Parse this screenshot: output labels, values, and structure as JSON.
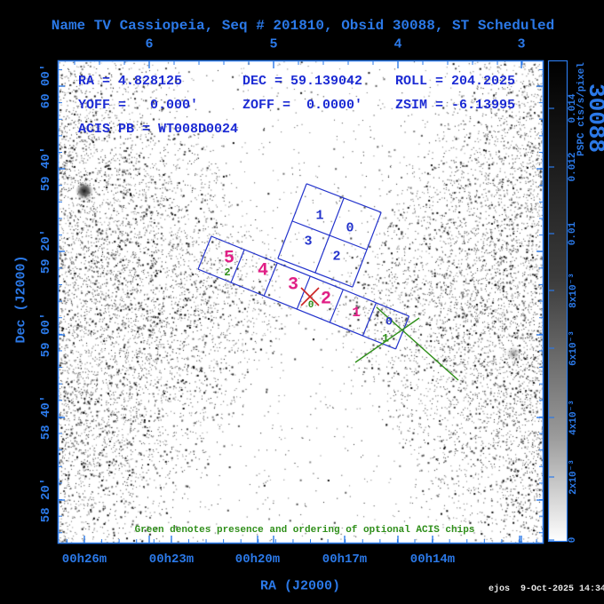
{
  "title": "Name TV Cassiopeia, Seq # 201810, Obsid 30088, ST Scheduled",
  "info": {
    "ra": "RA = 4.828125",
    "dec": "DEC = 59.139042",
    "roll": "ROLL = 204.2025",
    "yoff": "YOFF =   0.000'",
    "zoff": "ZOFF =  0.0000'",
    "zsim": "ZSIM = -6.13995",
    "acis_pb": "ACIS PB = WT008D0024"
  },
  "axes": {
    "top": {
      "labels": [
        "6",
        "5",
        "4",
        "3"
      ]
    },
    "bottom": {
      "title": "RA (J2000)",
      "labels": [
        "00h26m",
        "00h23m",
        "00h20m",
        "00h17m",
        "00h14m"
      ]
    },
    "left": {
      "title": "Dec (J2000)",
      "labels": [
        "60 00'",
        "59 40'",
        "59 20'",
        "59 00'",
        "58 40'",
        "58 20'"
      ]
    }
  },
  "colorbar": {
    "title": "PSPC cts/s/pixel",
    "labels": [
      "0.014",
      "0.012",
      "0.01",
      "8x10⁻³",
      "6x10⁻³",
      "4x10⁻³",
      "2x10⁻³",
      "0"
    ],
    "corner_number": "30088"
  },
  "chips": {
    "i_array": [
      {
        "label": "1"
      },
      {
        "label": "0"
      },
      {
        "label": "3"
      },
      {
        "label": "2"
      }
    ],
    "s_array": [
      {
        "label": "5",
        "optional": "2"
      },
      {
        "label": "4"
      },
      {
        "label": "3"
      },
      {
        "label": "2"
      },
      {
        "label": "1"
      },
      {
        "label": "0",
        "optional": "1"
      }
    ],
    "aimpoint_optional": "0"
  },
  "legend": "Green denotes presence and ordering of optional ACIS chips",
  "footer": "ejos  9-Oct-2025 14:34",
  "colors": {
    "axis_blue": "#2b79e8",
    "info_blue": "#1c2bd4",
    "chip_blue": "#2333cc",
    "magenta": "#e01f85",
    "green": "#2f8f1a",
    "red_x": "#cc2222",
    "background": "#000000",
    "sky": "#ffffff"
  },
  "chart_data": {
    "type": "heatmap",
    "title": "Name TV Cassiopeia, Seq # 201810, Obsid 30088, ST Scheduled",
    "xlabel": "RA (J2000)",
    "ylabel": "Dec (J2000)",
    "x_tick_labels": [
      "00h26m",
      "00h23m",
      "00h20m",
      "00h17m",
      "00h14m"
    ],
    "y_tick_labels": [
      "60 00'",
      "59 40'",
      "59 20'",
      "59 00'",
      "58 40'",
      "58 20'"
    ],
    "top_axis_tick_labels": [
      "6",
      "5",
      "4",
      "3"
    ],
    "colorbar": {
      "label": "PSPC cts/s/pixel",
      "tick_labels": [
        "0.014",
        "0.012",
        "0.01",
        "8x10⁻³",
        "6x10⁻³",
        "4x10⁻³",
        "2x10⁻³",
        "0"
      ],
      "scale": "grayscale, black = high intensity"
    },
    "annotations": {
      "target": {
        "ra": "4.828125",
        "dec": "59.139042",
        "roll": "204.2025"
      },
      "acis_i_chip_labels": [
        "1",
        "0",
        "3",
        "2"
      ],
      "acis_s_chip_labels": [
        "5",
        "4",
        "3",
        "2",
        "1",
        "0"
      ],
      "optional_chip_orders": [
        "0",
        "1",
        "2"
      ],
      "legend": "Green denotes presence and ordering of optional ACIS chips"
    }
  }
}
